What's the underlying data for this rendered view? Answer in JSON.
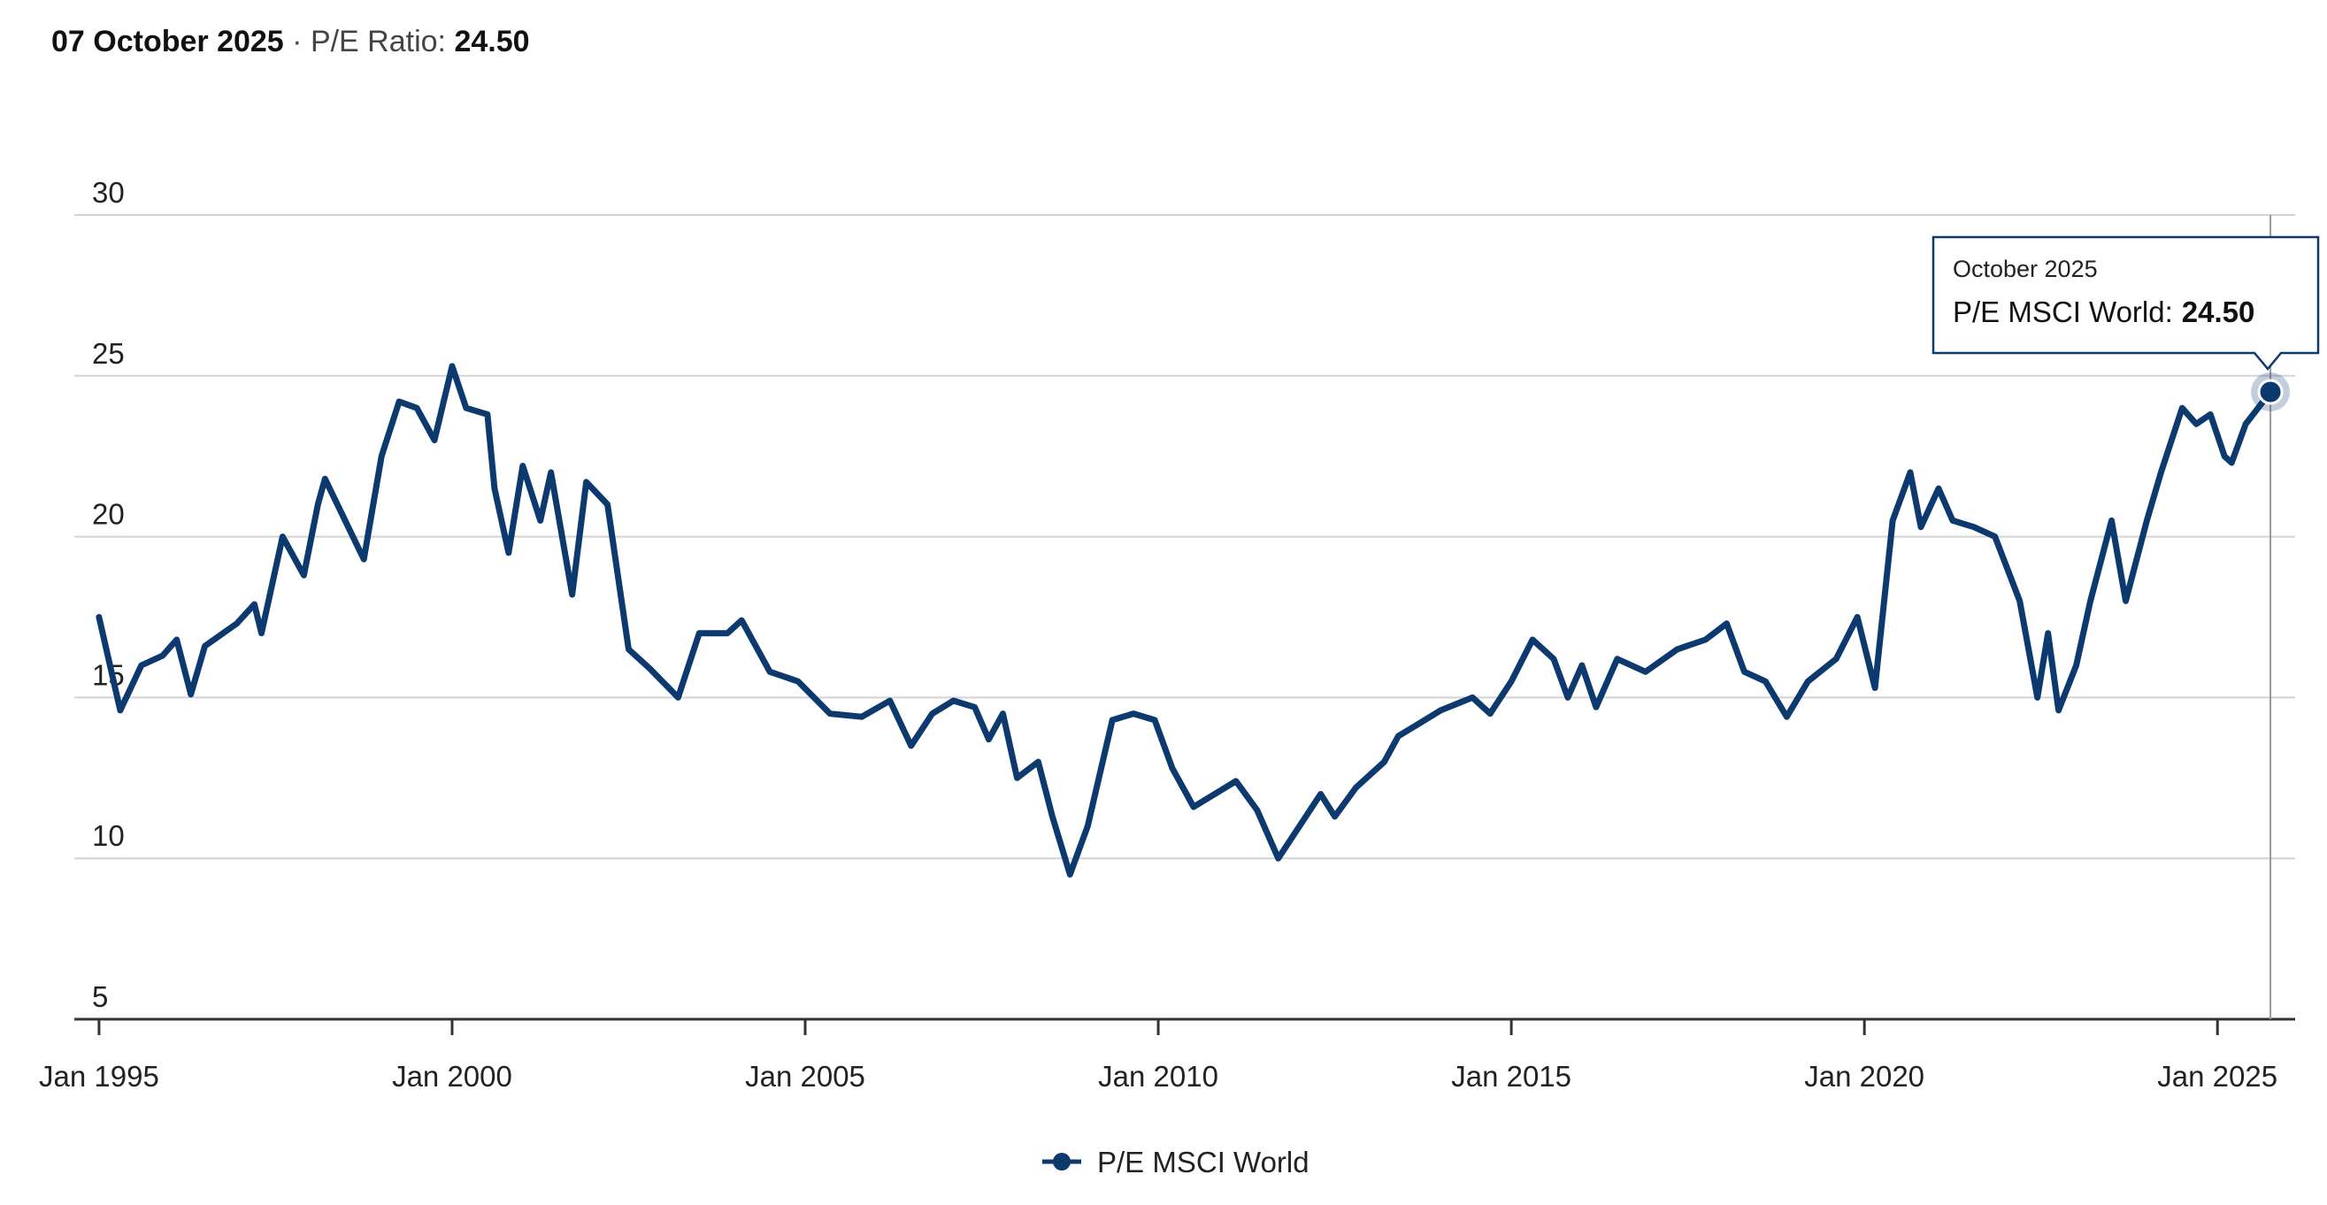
{
  "chart_data": {
    "type": "line",
    "header": {
      "date": "07 October 2025",
      "separator": "·",
      "metric_label": "P/E Ratio:",
      "metric_value": "24.50"
    },
    "tooltip": {
      "title": "October 2025",
      "label": "P/E MSCI World:",
      "value": "24.50"
    },
    "x": [
      1995.0,
      1995.3,
      1995.6,
      1995.9,
      1996.1,
      1996.3,
      1996.5,
      1996.95,
      1997.2,
      1997.3,
      1997.6,
      1997.9,
      1998.1,
      1998.2,
      1998.75,
      1999.0,
      1999.25,
      1999.5,
      1999.75,
      2000.0,
      2000.2,
      2000.5,
      2000.6,
      2000.8,
      2001.0,
      2001.25,
      2001.4,
      2001.7,
      2001.9,
      2002.2,
      2002.5,
      2002.8,
      2003.2,
      2003.5,
      2003.9,
      2004.1,
      2004.5,
      2004.9,
      2005.35,
      2005.8,
      2006.2,
      2006.5,
      2006.8,
      2007.1,
      2007.4,
      2007.6,
      2007.8,
      2008.0,
      2008.3,
      2008.5,
      2008.75,
      2009.0,
      2009.35,
      2009.65,
      2009.95,
      2010.2,
      2010.5,
      2010.8,
      2011.1,
      2011.4,
      2011.7,
      2012.0,
      2012.3,
      2012.5,
      2012.8,
      2013.2,
      2013.4,
      2013.7,
      2014.0,
      2014.45,
      2014.7,
      2015.0,
      2015.3,
      2015.6,
      2015.8,
      2016.0,
      2016.2,
      2016.5,
      2016.9,
      2017.35,
      2017.75,
      2018.05,
      2018.3,
      2018.6,
      2018.9,
      2019.2,
      2019.6,
      2019.9,
      2020.15,
      2020.4,
      2020.65,
      2020.8,
      2021.05,
      2021.25,
      2021.55,
      2021.85,
      2022.2,
      2022.45,
      2022.6,
      2022.75,
      2023.0,
      2023.2,
      2023.5,
      2023.7,
      2024.0,
      2024.2,
      2024.5,
      2024.7,
      2024.9,
      2025.1,
      2025.2,
      2025.4,
      2025.75
    ],
    "series": [
      {
        "name": "P/E MSCI World",
        "color": "#0d3a6e",
        "values": [
          17.5,
          14.6,
          16.0,
          16.3,
          16.8,
          15.1,
          16.6,
          17.3,
          17.9,
          17.0,
          20.0,
          18.8,
          21.0,
          21.8,
          19.3,
          22.5,
          24.2,
          24.0,
          23.0,
          25.3,
          24.0,
          23.8,
          21.5,
          19.5,
          22.2,
          20.5,
          22.0,
          18.2,
          21.7,
          21.0,
          16.5,
          15.9,
          15.0,
          17.0,
          17.0,
          17.4,
          15.8,
          15.5,
          14.5,
          14.4,
          14.9,
          13.5,
          14.5,
          14.9,
          14.7,
          13.7,
          14.5,
          12.5,
          13.0,
          11.3,
          9.5,
          11.0,
          14.3,
          14.5,
          14.3,
          12.8,
          11.6,
          12.0,
          12.4,
          11.5,
          10.0,
          11.0,
          12.0,
          11.3,
          12.2,
          13.0,
          13.8,
          14.2,
          14.6,
          15.0,
          14.5,
          15.5,
          16.8,
          16.2,
          15.0,
          16.0,
          14.7,
          16.2,
          15.8,
          16.5,
          16.8,
          17.3,
          15.8,
          15.5,
          14.4,
          15.5,
          16.2,
          17.5,
          15.3,
          20.5,
          22.0,
          20.3,
          21.5,
          20.5,
          20.3,
          20.0,
          18.0,
          15.0,
          17.0,
          14.6,
          16.0,
          18.0,
          20.5,
          18.0,
          20.5,
          22.0,
          24.0,
          23.5,
          23.8,
          22.5,
          22.3,
          23.5,
          24.5
        ]
      }
    ],
    "xlim": [
      1994.65,
      2026.1
    ],
    "xticks": [
      {
        "value": 1995,
        "label": "Jan 1995"
      },
      {
        "value": 2000,
        "label": "Jan 2000"
      },
      {
        "value": 2005,
        "label": "Jan 2005"
      },
      {
        "value": 2010,
        "label": "Jan 2010"
      },
      {
        "value": 2015,
        "label": "Jan 2015"
      },
      {
        "value": 2020,
        "label": "Jan 2020"
      },
      {
        "value": 2025,
        "label": "Jan 2025"
      }
    ],
    "ylim": [
      5,
      30
    ],
    "yticks": [
      5,
      10,
      15,
      20,
      25,
      30
    ],
    "grid": true,
    "legend": "bottom"
  }
}
